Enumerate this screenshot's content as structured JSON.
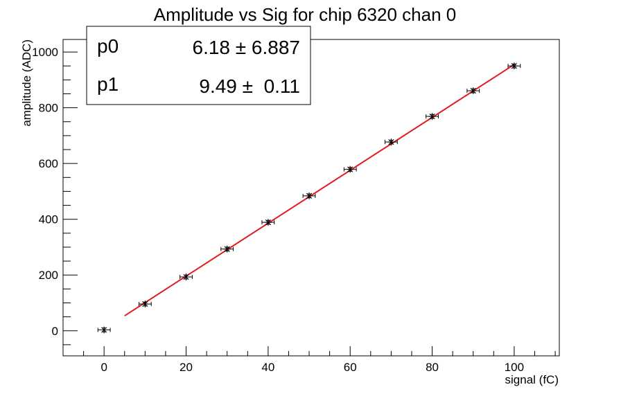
{
  "chart_data": {
    "type": "scatter",
    "title": "Amplitude vs Sig for chip 6320 chan 0",
    "xlabel": "signal (fC)",
    "ylabel": "amplitude (ADC)",
    "xlim": [
      -10,
      111
    ],
    "ylim": [
      -90,
      1045
    ],
    "xticks": [
      0,
      20,
      40,
      60,
      80,
      100
    ],
    "yticks": [
      0,
      200,
      400,
      600,
      800,
      1000
    ],
    "grid": false,
    "points": {
      "x": [
        0,
        10,
        20,
        30,
        40,
        50,
        60,
        70,
        80,
        90,
        100
      ],
      "y": [
        3,
        96,
        193,
        293,
        389,
        484,
        579,
        677,
        769,
        861,
        950
      ],
      "x_err": 1.5,
      "y_err": 7,
      "color": "#000000"
    },
    "fit": {
      "x_range": [
        5,
        100
      ],
      "p0": 6.18,
      "p1": 9.49,
      "color": "#e31a1c"
    },
    "stats_box": {
      "placement": "top-left",
      "rows": [
        {
          "name": "p0",
          "value": "6.18 ± 6.887"
        },
        {
          "name": "p1",
          "value": "9.49 ±  0.11"
        }
      ]
    }
  }
}
